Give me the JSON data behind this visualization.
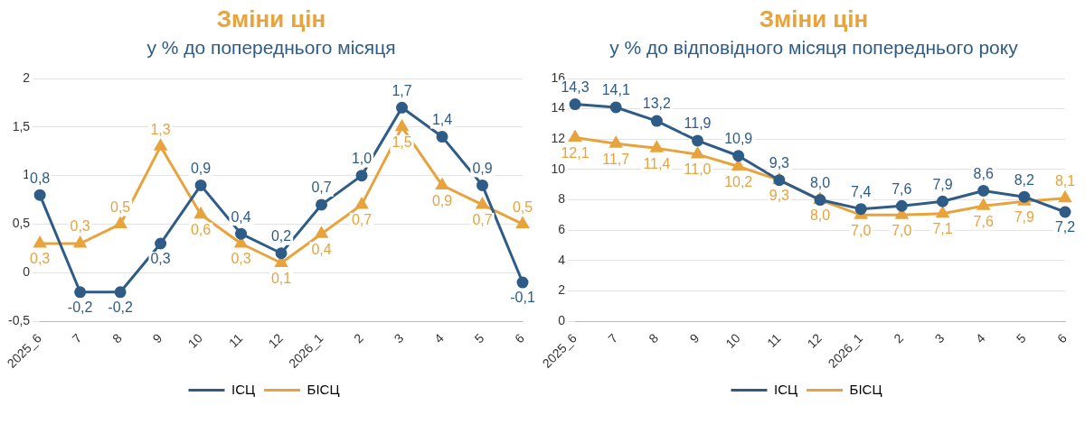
{
  "chart_data": [
    {
      "type": "line",
      "title": "Зміни цін",
      "subtitle": "у % до попереднього місяця",
      "categories": [
        "2025_6",
        "7",
        "8",
        "9",
        "10",
        "11",
        "12",
        "2026_1",
        "2",
        "3",
        "4",
        "5",
        "6"
      ],
      "series": [
        {
          "name": "ІСЦ",
          "color": "#2e5c87",
          "marker": "circle",
          "values": [
            0.8,
            -0.2,
            -0.2,
            0.3,
            0.9,
            0.4,
            0.2,
            0.7,
            1.0,
            1.7,
            1.4,
            0.9,
            -0.1
          ],
          "value_labels": [
            "0,8",
            "-0,2",
            "-0,2",
            "0,3",
            "0,9",
            "0,4",
            "0,2",
            "0,7",
            "1,0",
            "1,7",
            "1,4",
            "0,9",
            "-0,1"
          ]
        },
        {
          "name": "БІСЦ",
          "color": "#e8a33d",
          "marker": "triangle",
          "values": [
            0.3,
            0.3,
            0.5,
            1.3,
            0.6,
            0.3,
            0.1,
            0.4,
            0.7,
            1.5,
            0.9,
            0.7,
            0.5
          ],
          "value_labels": [
            "0,3",
            "0,3",
            "0,5",
            "1,3",
            "0,6",
            "0,3",
            "0,1",
            "0,4",
            "0,7",
            "1,5",
            "0,9",
            "0,7",
            "0,5"
          ]
        }
      ],
      "ylim": [
        -0.5,
        2
      ],
      "yticks": [
        {
          "value": -0.5,
          "label": "-0,5"
        },
        0,
        {
          "value": 0.5,
          "label": "0,5"
        },
        1,
        {
          "value": 1.5,
          "label": "1,5"
        },
        2
      ],
      "grid": "y",
      "legend": "bottom"
    },
    {
      "type": "line",
      "title": "Зміни цін",
      "subtitle": "у % до відповідного місяця попереднього року",
      "categories": [
        "2025_6",
        "7",
        "8",
        "9",
        "10",
        "11",
        "12",
        "2026_1",
        "2",
        "3",
        "4",
        "5",
        "6"
      ],
      "series": [
        {
          "name": "ІСЦ",
          "color": "#2e5c87",
          "marker": "circle",
          "values": [
            14.3,
            14.1,
            13.2,
            11.9,
            10.9,
            9.3,
            8.0,
            7.4,
            7.6,
            7.9,
            8.6,
            8.2,
            7.2
          ],
          "value_labels": [
            "14,3",
            "14,1",
            "13,2",
            "11,9",
            "10,9",
            "9,3",
            "8,0",
            "7,4",
            "7,6",
            "7,9",
            "8,6",
            "8,2",
            "7,2"
          ]
        },
        {
          "name": "БІСЦ",
          "color": "#e8a33d",
          "marker": "triangle",
          "values": [
            12.1,
            11.7,
            11.4,
            11.0,
            10.2,
            9.3,
            8.0,
            7.0,
            7.0,
            7.1,
            7.6,
            7.9,
            8.1
          ],
          "value_labels": [
            "12,1",
            "11,7",
            "11,4",
            "11,0",
            "10,2",
            "9,3",
            "8,0",
            "7,0",
            "7,0",
            "7,1",
            "7,6",
            "7,9",
            "8,1"
          ]
        }
      ],
      "ylim": [
        0,
        16
      ],
      "yticks": [
        0,
        2,
        4,
        6,
        8,
        10,
        12,
        14,
        16
      ],
      "grid": "y",
      "legend": "bottom"
    }
  ]
}
